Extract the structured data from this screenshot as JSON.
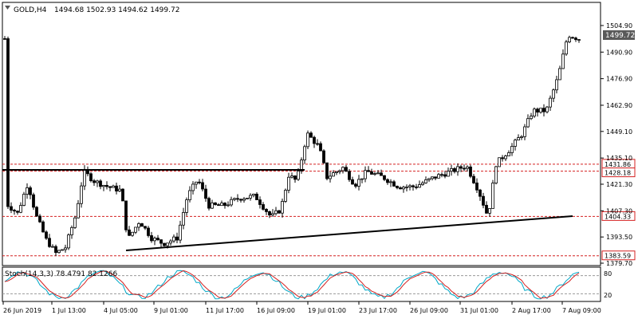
{
  "header": {
    "symbol": "GOLD,H4",
    "ohlc": "1494.68 1502.93 1494.62 1499.72",
    "menu_icon": "triangle-down-icon"
  },
  "price_axis": {
    "ticks": [
      "1504.90",
      "1490.90",
      "1476.90",
      "1462.90",
      "1449.10",
      "1435.10",
      "1421.30",
      "1407.30",
      "1393.50",
      "1379.70"
    ],
    "current": "1499.72"
  },
  "levels": [
    {
      "value": "1431.86",
      "color": "#d42020"
    },
    {
      "value": "1428.18",
      "color": "#d42020"
    },
    {
      "value": "1404.33",
      "color": "#d42020"
    },
    {
      "value": "1383.59",
      "color": "#d42020"
    }
  ],
  "indicator": {
    "label": "Stoch(14,3,3) 78.4791 82.1266",
    "upper_level": "80",
    "lower_level": "20"
  },
  "time_axis": {
    "labels": [
      "26 Jun 2019",
      "1 Jul 13:00",
      "4 Jul 05:00",
      "9 Jul 01:00",
      "11 Jul 17:00",
      "16 Jul 09:00",
      "19 Jul 01:00",
      "23 Jul 17:00",
      "26 Jul 09:00",
      "31 Jul 01:00",
      "2 Aug 17:00",
      "7 Aug 09:00"
    ]
  },
  "colors": {
    "candle": "#000000",
    "level_line": "#d42020",
    "stoch_main": "#00a9c8",
    "stoch_signal": "#d42020",
    "trend_line": "#000000"
  }
}
